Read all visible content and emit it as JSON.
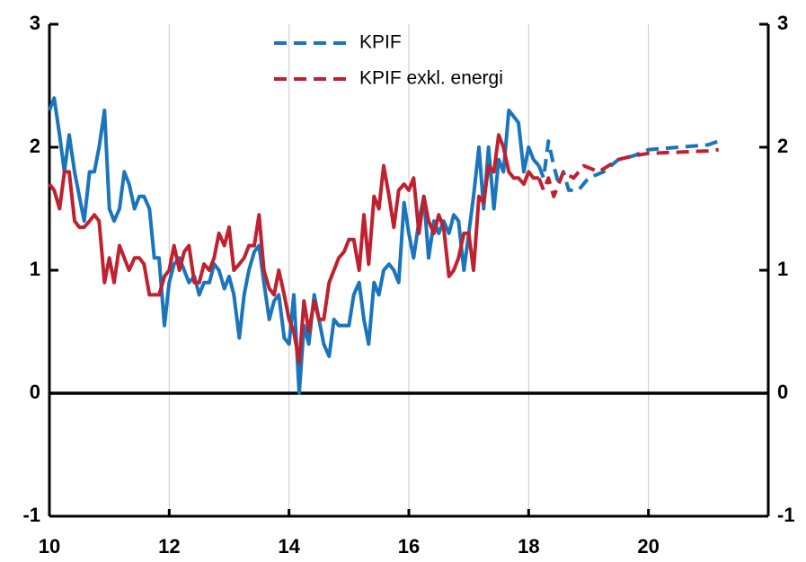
{
  "chart_data": {
    "type": "line",
    "xlim": [
      10,
      22
    ],
    "xticks": [
      10,
      12,
      14,
      16,
      18,
      20
    ],
    "ylim": [
      -1,
      3
    ],
    "yticks": [
      -1,
      0,
      1,
      2,
      3
    ],
    "y2lim": [
      -1,
      3
    ],
    "y2ticks": [
      -1,
      0,
      1,
      2,
      3
    ],
    "grid": true,
    "legend": "top",
    "series": [
      {
        "color": "#1a75bc",
        "dashed": false,
        "x": [
          10,
          10.08,
          10.17,
          10.25,
          10.33,
          10.42,
          10.5,
          10.58,
          10.67,
          10.75,
          10.83,
          10.92,
          11,
          11.08,
          11.17,
          11.25,
          11.33,
          11.42,
          11.5,
          11.58,
          11.67,
          11.75,
          11.83,
          11.92,
          12,
          12.08,
          12.17,
          12.25,
          12.33,
          12.42,
          12.5,
          12.58,
          12.67,
          12.75,
          12.83,
          12.92,
          13,
          13.08,
          13.17,
          13.25,
          13.33,
          13.42,
          13.5,
          13.58,
          13.67,
          13.75,
          13.83,
          13.92,
          14,
          14.08,
          14.17,
          14.25,
          14.33,
          14.42,
          14.5,
          14.58,
          14.67,
          14.75,
          14.83,
          14.92,
          15,
          15.08,
          15.17,
          15.25,
          15.33,
          15.42,
          15.5,
          15.58,
          15.67,
          15.75,
          15.83,
          15.92,
          16,
          16.08,
          16.17,
          16.25,
          16.33,
          16.42,
          16.5,
          16.58,
          16.67,
          16.75,
          16.83,
          16.92,
          17,
          17.08,
          17.17,
          17.25,
          17.33,
          17.42,
          17.5,
          17.58,
          17.67,
          17.75,
          17.83,
          17.92,
          18,
          18.08,
          18.17
        ],
        "values": [
          2.3,
          2.4,
          2.1,
          1.8,
          2.1,
          1.8,
          1.6,
          1.4,
          1.8,
          1.8,
          2.0,
          2.3,
          1.5,
          1.4,
          1.5,
          1.8,
          1.7,
          1.5,
          1.6,
          1.6,
          1.5,
          1.1,
          1.1,
          0.55,
          0.9,
          1.05,
          1.1,
          1.0,
          0.9,
          0.95,
          0.8,
          0.9,
          0.9,
          1.05,
          1.0,
          0.85,
          0.95,
          0.8,
          0.45,
          0.8,
          1.0,
          1.15,
          1.2,
          0.9,
          0.6,
          0.75,
          0.8,
          0.45,
          0.4,
          0.8,
          0.0,
          0.55,
          0.4,
          0.8,
          0.6,
          0.4,
          0.3,
          0.6,
          0.55,
          0.55,
          0.55,
          0.8,
          0.9,
          0.6,
          0.4,
          0.9,
          0.8,
          1.0,
          1.05,
          1.0,
          0.9,
          1.55,
          1.3,
          1.1,
          1.4,
          1.6,
          1.1,
          1.4,
          1.3,
          1.4,
          1.3,
          1.45,
          1.4,
          1.0,
          1.3,
          1.6,
          2.0,
          1.5,
          2.0,
          1.5,
          1.9,
          1.8,
          2.3,
          2.25,
          2.2,
          1.8,
          2.0,
          1.9,
          1.85
        ]
      },
      {
        "color": "#c0212f",
        "dashed": false,
        "x": [
          10,
          10.08,
          10.17,
          10.25,
          10.33,
          10.42,
          10.5,
          10.58,
          10.67,
          10.75,
          10.83,
          10.92,
          11,
          11.08,
          11.17,
          11.25,
          11.33,
          11.42,
          11.5,
          11.58,
          11.67,
          11.75,
          11.83,
          11.92,
          12,
          12.08,
          12.17,
          12.25,
          12.33,
          12.42,
          12.5,
          12.58,
          12.67,
          12.75,
          12.83,
          12.92,
          13,
          13.08,
          13.17,
          13.25,
          13.33,
          13.42,
          13.5,
          13.58,
          13.67,
          13.75,
          13.83,
          13.92,
          14,
          14.08,
          14.17,
          14.25,
          14.33,
          14.42,
          14.5,
          14.58,
          14.67,
          14.75,
          14.83,
          14.92,
          15,
          15.08,
          15.17,
          15.25,
          15.33,
          15.42,
          15.5,
          15.58,
          15.67,
          15.75,
          15.83,
          15.92,
          16,
          16.08,
          16.17,
          16.25,
          16.33,
          16.42,
          16.5,
          16.58,
          16.67,
          16.75,
          16.83,
          16.92,
          17,
          17.08,
          17.17,
          17.25,
          17.33,
          17.42,
          17.5,
          17.58,
          17.67,
          17.75,
          17.83,
          17.92,
          18,
          18.08,
          18.17
        ],
        "values": [
          1.7,
          1.65,
          1.5,
          1.8,
          1.8,
          1.4,
          1.35,
          1.35,
          1.4,
          1.45,
          1.4,
          0.9,
          1.1,
          0.9,
          1.2,
          1.1,
          1.0,
          1.1,
          1.1,
          1.05,
          0.8,
          0.8,
          0.8,
          0.95,
          1.0,
          1.2,
          1.0,
          1.15,
          1.2,
          0.9,
          0.9,
          1.05,
          1.0,
          1.1,
          1.3,
          1.2,
          1.35,
          1.0,
          1.05,
          1.1,
          1.2,
          1.2,
          1.45,
          1.0,
          0.85,
          0.8,
          1.0,
          0.8,
          0.6,
          0.5,
          0.25,
          0.75,
          0.5,
          0.75,
          0.6,
          0.6,
          0.9,
          1.0,
          1.1,
          1.15,
          1.25,
          1.25,
          1.0,
          1.45,
          1.05,
          1.6,
          1.5,
          1.85,
          1.6,
          1.35,
          1.65,
          1.7,
          1.65,
          1.75,
          1.3,
          1.6,
          1.4,
          1.3,
          1.45,
          1.35,
          0.95,
          1.0,
          1.1,
          1.3,
          1.3,
          1.0,
          1.6,
          1.55,
          1.85,
          1.8,
          2.1,
          2.0,
          1.8,
          1.75,
          1.75,
          1.7,
          1.8,
          1.75,
          1.75
        ]
      },
      {
        "name": "KPIF",
        "color": "#1a75bc",
        "dashed": true,
        "x": [
          18.17,
          18.25,
          18.33,
          18.42,
          18.5,
          18.58,
          18.67,
          18.83,
          19,
          19.25,
          19.5,
          19.75,
          20,
          20.5,
          21,
          21.17
        ],
        "values": [
          1.85,
          1.75,
          2.05,
          1.85,
          1.7,
          1.8,
          1.65,
          1.65,
          1.75,
          1.8,
          1.9,
          1.93,
          1.98,
          2.0,
          2.02,
          2.05
        ]
      },
      {
        "name": "KPIF exkl. energi",
        "color": "#c0212f",
        "dashed": true,
        "x": [
          18.17,
          18.25,
          18.33,
          18.42,
          18.58,
          18.75,
          18.92,
          19.17,
          19.5,
          19.75,
          20,
          20.5,
          21,
          21.17
        ],
        "values": [
          1.75,
          1.65,
          1.75,
          1.6,
          1.8,
          1.75,
          1.85,
          1.8,
          1.9,
          1.93,
          1.95,
          1.96,
          1.97,
          1.98
        ]
      }
    ]
  }
}
